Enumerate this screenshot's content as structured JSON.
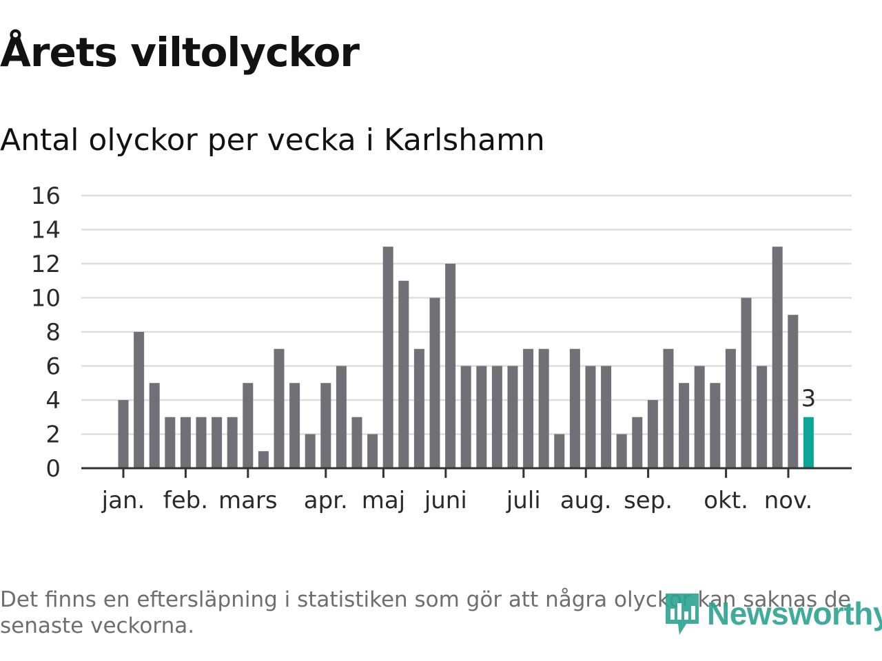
{
  "title": "Årets viltolyckor",
  "subtitle": "Antal olyckor per vecka i Karlshamn",
  "footnote": "Det finns en eftersläpning i statistiken som gör att några olyckor kan saknas de senaste veckorna.",
  "brand": {
    "name": "Newsworthy",
    "icon": "newsworthy-logo-icon"
  },
  "colors": {
    "bar": "#717077",
    "highlight": "#0ca597",
    "grid": "#dddddd",
    "axis": "#333333",
    "brand": "#2aa391"
  },
  "chart_data": {
    "type": "bar",
    "title": "Antal olyckor per vecka i Karlshamn",
    "xlabel": "",
    "ylabel": "",
    "ylim": [
      0,
      16
    ],
    "yticks": [
      0,
      2,
      4,
      6,
      8,
      10,
      12,
      14,
      16
    ],
    "grid": true,
    "weeks": [
      1,
      2,
      3,
      4,
      5,
      6,
      7,
      8,
      9,
      10,
      11,
      12,
      13,
      14,
      15,
      16,
      17,
      18,
      19,
      20,
      21,
      22,
      23,
      24,
      25,
      26,
      27,
      28,
      29,
      30,
      31,
      32,
      33,
      34,
      35,
      36,
      37,
      38,
      39,
      40,
      41,
      42,
      43,
      44,
      45
    ],
    "values": [
      4,
      8,
      5,
      3,
      3,
      3,
      3,
      3,
      5,
      1,
      7,
      5,
      2,
      5,
      6,
      3,
      2,
      13,
      11,
      7,
      10,
      12,
      6,
      6,
      6,
      6,
      7,
      7,
      2,
      7,
      6,
      6,
      2,
      3,
      4,
      7,
      5,
      6,
      5,
      7,
      10,
      6,
      13,
      9,
      3
    ],
    "highlight_index": 44,
    "highlight_label": "3",
    "month_ticks": [
      {
        "label": "jan.",
        "pos": 0.5
      },
      {
        "label": "feb.",
        "pos": 4.5
      },
      {
        "label": "mars",
        "pos": 8.5
      },
      {
        "label": "apr.",
        "pos": 13.5
      },
      {
        "label": "maj",
        "pos": 17.2
      },
      {
        "label": "juni",
        "pos": 21.2
      },
      {
        "label": "juli",
        "pos": 26.2
      },
      {
        "label": "aug.",
        "pos": 30.2
      },
      {
        "label": "sep.",
        "pos": 34.2
      },
      {
        "label": "okt.",
        "pos": 39.2
      },
      {
        "label": "nov.",
        "pos": 43.2
      }
    ]
  }
}
